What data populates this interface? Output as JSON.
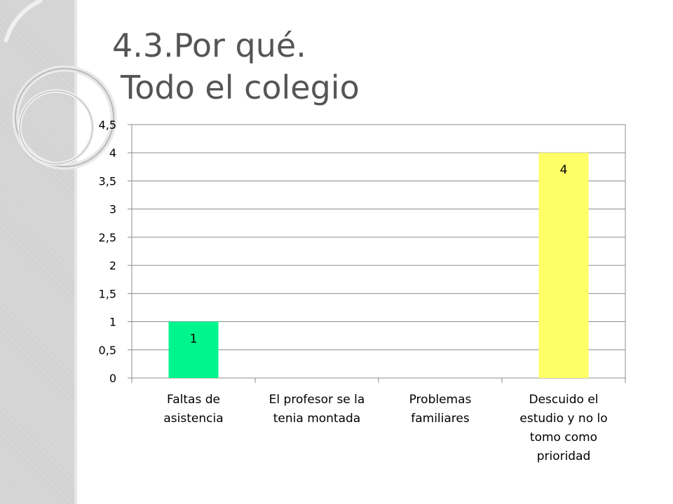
{
  "slide": {
    "title_line1": "4.3.Por qué.",
    "title_line2": "Todo el colegio"
  },
  "chart_data": {
    "type": "bar",
    "categories": [
      [
        "Faltas de",
        "asistencia"
      ],
      [
        "El profesor se la",
        "tenia montada"
      ],
      [
        "Problemas",
        "familiares"
      ],
      [
        "Descuido el",
        "estudio y  no lo",
        "tomo como",
        "prioridad"
      ]
    ],
    "values": [
      1,
      0,
      0,
      4
    ],
    "data_labels": [
      "1",
      "",
      "",
      "4"
    ],
    "bar_colors": [
      "#00f58c",
      "#00f58c",
      "#00f58c",
      "#ffff66"
    ],
    "ylim": [
      0,
      4.5
    ],
    "yticks": [
      0,
      0.5,
      1,
      1.5,
      2,
      2.5,
      3,
      3.5,
      4,
      4.5
    ],
    "ytick_labels": [
      "0",
      "0,5",
      "1",
      "1,5",
      "2",
      "2,5",
      "3",
      "3,5",
      "4",
      "4,5"
    ],
    "grid": true,
    "title": "",
    "xlabel": "",
    "ylabel": ""
  }
}
